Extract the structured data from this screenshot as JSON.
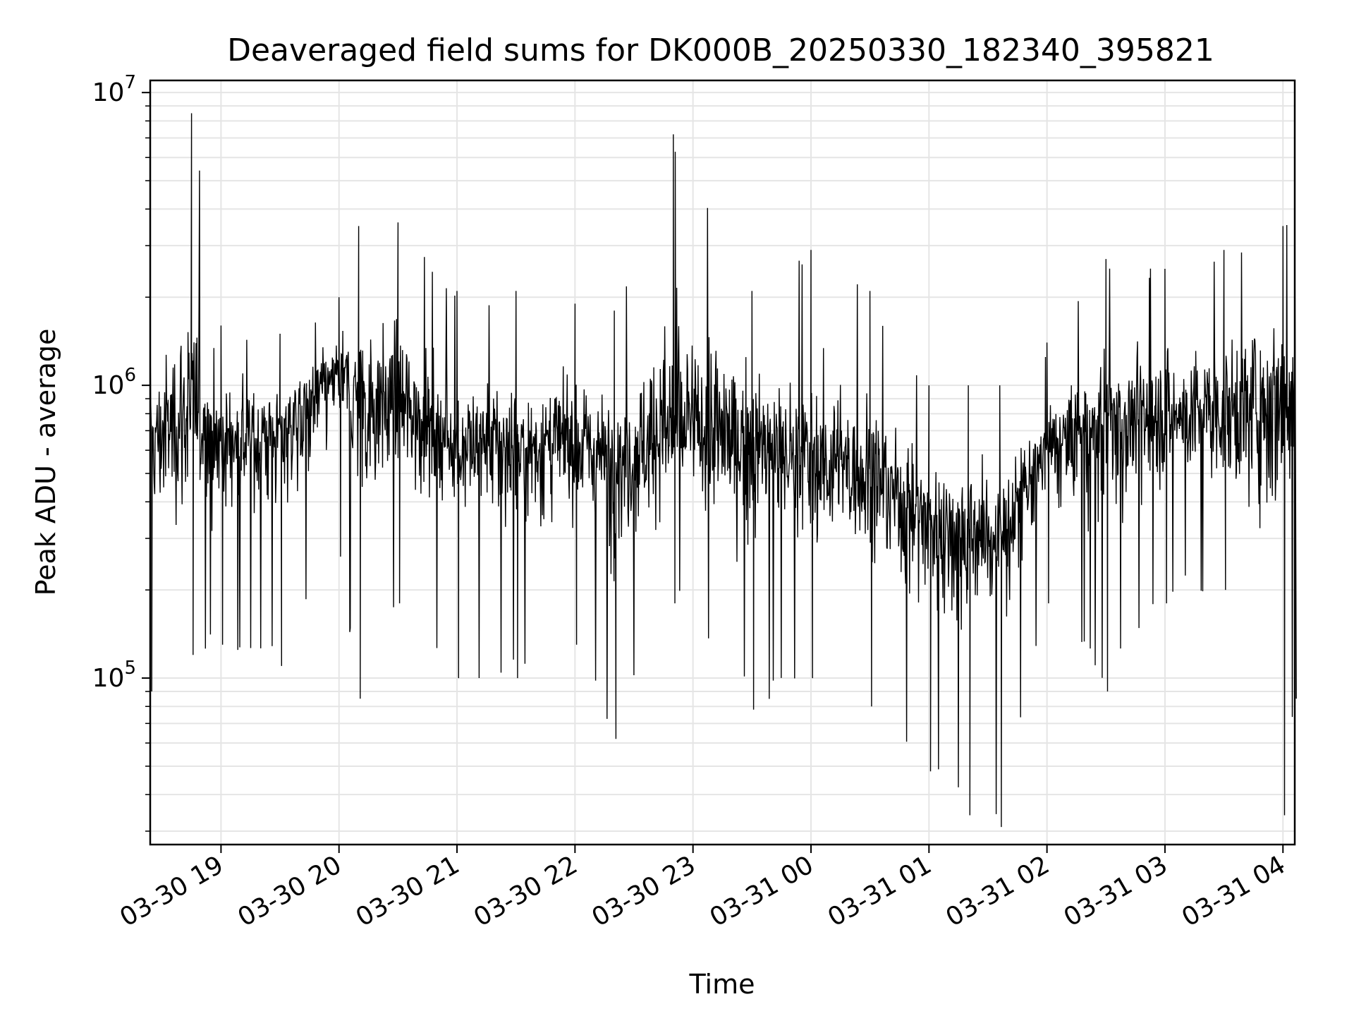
{
  "chart_data": {
    "type": "line",
    "title": "Deaveraged field sums for DK000B_20250330_182340_395821",
    "xlabel": "Time",
    "ylabel": "Peak ADU - average",
    "yscale": "log",
    "ylim": [
      27000,
      11000000
    ],
    "xlim": [
      "2025-03-30 18:24",
      "2025-03-31 04:06"
    ],
    "x_tick_labels": [
      "03-30 19",
      "03-30 20",
      "03-30 21",
      "03-30 22",
      "03-30 23",
      "03-31 00",
      "03-31 01",
      "03-31 02",
      "03-31 03",
      "03-31 04"
    ],
    "y_tick_labels": [
      {
        "value": 100000,
        "base": "10",
        "exp": "5"
      },
      {
        "value": 1000000,
        "base": "10",
        "exp": "6"
      },
      {
        "value": 10000000,
        "base": "10",
        "exp": "7"
      }
    ],
    "grid": true,
    "series": [
      {
        "color": "#000000",
        "start_time": "2025-03-30 18:24",
        "end_time": "2025-03-31 04:06",
        "envelope": [
          {
            "t": "2025-03-30 18:24",
            "median": 650000,
            "high": 1450000,
            "low": 90000
          },
          {
            "t": "2025-03-30 18:45",
            "median": 800000,
            "high": 8500000,
            "low": 120000
          },
          {
            "t": "2025-03-30 19:00",
            "median": 650000,
            "high": 1600000,
            "low": 130000
          },
          {
            "t": "2025-03-30 19:30",
            "median": 700000,
            "high": 1500000,
            "low": 110000
          },
          {
            "t": "2025-03-30 20:00",
            "median": 1100000,
            "high": 2000000,
            "low": 260000
          },
          {
            "t": "2025-03-30 20:10",
            "median": 900000,
            "high": 3500000,
            "low": 85000
          },
          {
            "t": "2025-03-30 20:30",
            "median": 850000,
            "high": 3600000,
            "low": 180000
          },
          {
            "t": "2025-03-30 21:00",
            "median": 650000,
            "high": 2100000,
            "low": 100000
          },
          {
            "t": "2025-03-30 21:30",
            "median": 600000,
            "high": 2100000,
            "low": 100000
          },
          {
            "t": "2025-03-30 22:00",
            "median": 650000,
            "high": 1900000,
            "low": 130000
          },
          {
            "t": "2025-03-30 22:20",
            "median": 550000,
            "high": 1800000,
            "low": 62000
          },
          {
            "t": "2025-03-30 22:50",
            "median": 700000,
            "high": 7200000,
            "low": 180000
          },
          {
            "t": "2025-03-30 23:30",
            "median": 650000,
            "high": 2100000,
            "low": 78000
          },
          {
            "t": "2025-03-31 00:00",
            "median": 550000,
            "high": 2900000,
            "low": 100000
          },
          {
            "t": "2025-03-31 00:30",
            "median": 500000,
            "high": 2100000,
            "low": 80000
          },
          {
            "t": "2025-03-31 01:00",
            "median": 350000,
            "high": 1000000,
            "low": 48000
          },
          {
            "t": "2025-03-31 01:20",
            "median": 330000,
            "high": 1000000,
            "low": 34000
          },
          {
            "t": "2025-03-31 01:36",
            "median": 300000,
            "high": 1000000,
            "low": 31000
          },
          {
            "t": "2025-03-31 02:00",
            "median": 600000,
            "high": 1400000,
            "low": 180000
          },
          {
            "t": "2025-03-31 02:30",
            "median": 750000,
            "high": 2700000,
            "low": 90000
          },
          {
            "t": "2025-03-31 03:00",
            "median": 800000,
            "high": 2500000,
            "low": 180000
          },
          {
            "t": "2025-03-31 03:30",
            "median": 800000,
            "high": 2900000,
            "low": 200000
          },
          {
            "t": "2025-03-31 04:00",
            "median": 1000000,
            "high": 3500000,
            "low": 34000
          },
          {
            "t": "2025-03-31 04:06",
            "median": 1100000,
            "high": 3600000,
            "low": 85000
          }
        ]
      }
    ]
  }
}
